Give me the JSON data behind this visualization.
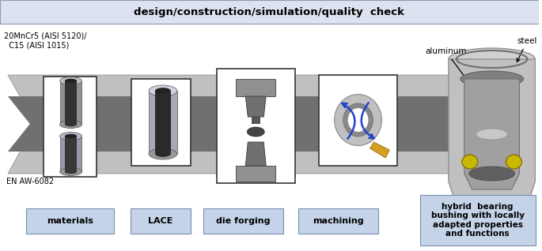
{
  "title": "design/construction/simulation/quality  check",
  "title_bg": "#dce2ef",
  "title_fontsize": 9.5,
  "box_bg": "#c5d3e8",
  "box_border": "#7a8fb0",
  "labels": [
    "materials",
    "LACE",
    "die forging",
    "machining"
  ],
  "material_text1": "20MnCr5 (AISI 5120)/",
  "material_text2": "  C15 (AISI 1015)",
  "material_text3": "EN AW-6082",
  "final_label": "hybrid  bearing\nbushing with locally\nadapted properties\nand functions",
  "final_box_bg": "#c5d3e8",
  "aluminum_label": "aluminum",
  "steel_label": "steel",
  "fig_bg": "#ffffff",
  "arrow_light": "#c8c8c8",
  "arrow_mid": "#a0a0a0",
  "arrow_dark": "#606060"
}
